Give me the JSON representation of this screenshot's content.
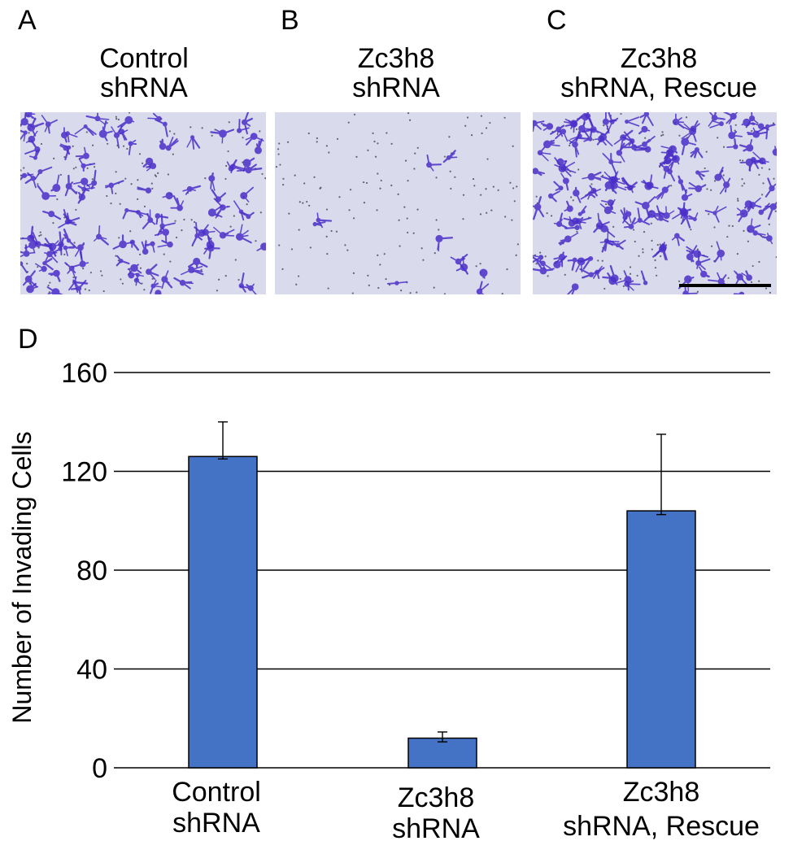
{
  "panels": [
    {
      "letter": "A",
      "title_line1": "Control",
      "title_line2": "shRNA"
    },
    {
      "letter": "B",
      "title_line1": "Zc3h8",
      "title_line2": "shRNA"
    },
    {
      "letter": "C",
      "title_line1": "Zc3h8",
      "title_line2": "shRNA, Rescue"
    }
  ],
  "chart_panel_letter": "D",
  "colors": {
    "bar": "#4472c4",
    "stain": "#4b2fc9",
    "micro_bg": "#d9dbec"
  },
  "chart_data": {
    "type": "bar",
    "categories": [
      {
        "line1": "Control",
        "line2": "shRNA"
      },
      {
        "line1": "Zc3h8",
        "line2": "shRNA"
      },
      {
        "line1": "Zc3h8",
        "line2": "shRNA, Rescue"
      }
    ],
    "values": [
      126,
      12,
      104
    ],
    "error_upper": [
      14,
      2.5,
      31
    ],
    "error_lower": [
      1,
      1.5,
      1.5
    ],
    "ylabel": "Number of Invading Cells",
    "ylim": [
      0,
      160
    ],
    "yticks": [
      "0",
      "40",
      "80",
      "120",
      "160"
    ],
    "grid": true
  }
}
